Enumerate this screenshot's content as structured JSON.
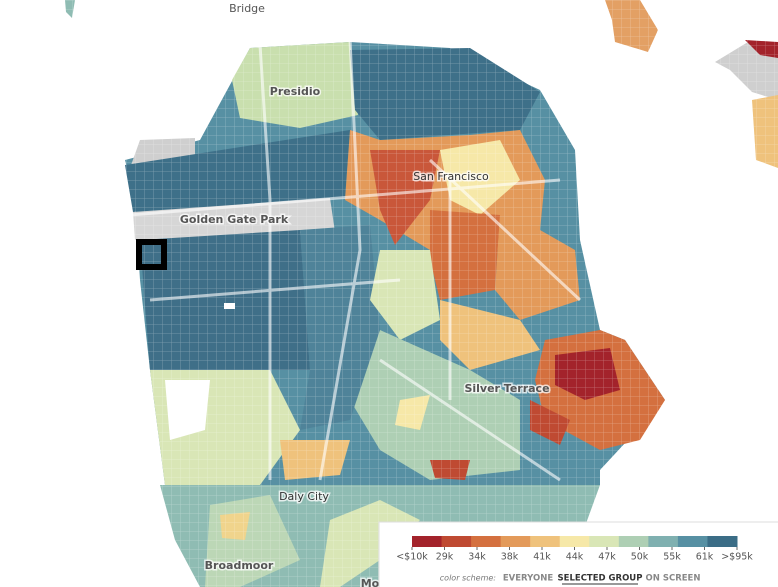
{
  "map": {
    "labels": [
      "Bridge",
      "Presidio",
      "San Francisco",
      "Golden Gate Park",
      "Silver Terrace",
      "Daly City",
      "Broadmoor",
      "Mo"
    ]
  },
  "legend": {
    "labels": [
      "<$10k",
      "29k",
      "34k",
      "38k",
      "41k",
      "44k",
      "47k",
      "50k",
      "55k",
      "61k",
      ">$95k"
    ],
    "colors": [
      "#a3232b",
      "#bf4a32",
      "#d4703f",
      "#e39a5a",
      "#efc27c",
      "#f6e8a8",
      "#d9e6b6",
      "#aecfb4",
      "#7fb0b0",
      "#5790a3",
      "#3b6d86"
    ]
  },
  "color_scheme": {
    "label": "color scheme:",
    "options": [
      "EVERYONE",
      "SELECTED GROUP",
      "ON SCREEN"
    ],
    "selected": 1
  }
}
